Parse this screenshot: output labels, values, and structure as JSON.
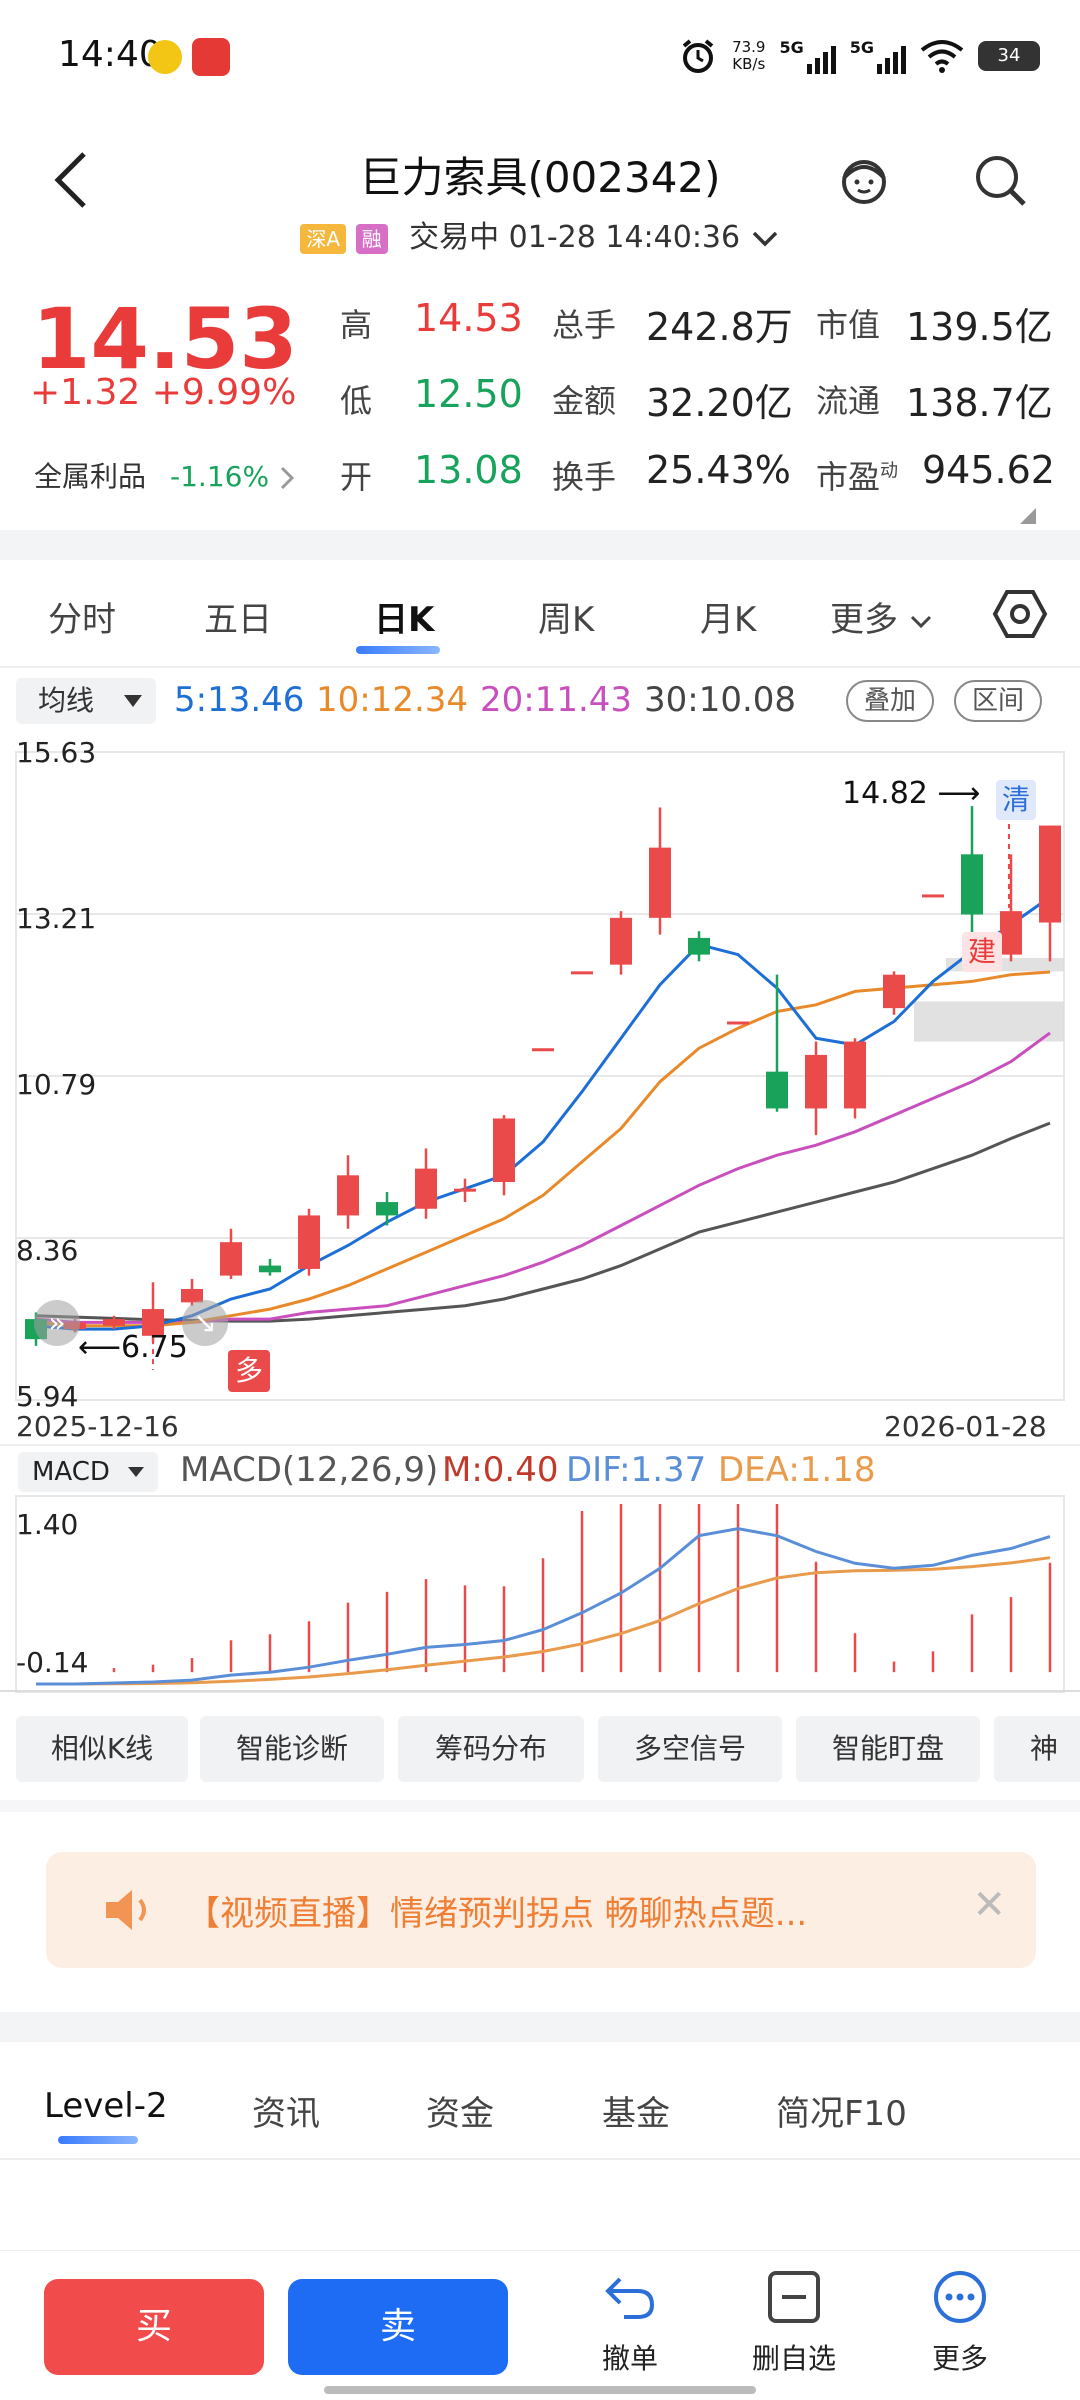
{
  "status_bar": {
    "time": "14:40",
    "speed_value": "73.9",
    "speed_unit": "KB/s",
    "sig1": "5G",
    "sig2": "5G",
    "battery": "34"
  },
  "header": {
    "title": "巨力索具(002342)",
    "tag1": "深A",
    "tag2": "融",
    "status": "交易中 01-28 14:40:36"
  },
  "quote": {
    "price": "14.53",
    "change": "+1.32 +9.99%",
    "profit_label": "全属利品",
    "profit_value": "-1.16%",
    "high_label": "高",
    "high": "14.53",
    "low_label": "低",
    "low": "12.50",
    "open_label": "开",
    "open": "13.08",
    "volume_label": "总手",
    "volume": "242.8万",
    "amount_label": "金额",
    "amount": "32.20亿",
    "turnover_label": "换手",
    "turnover": "25.43%",
    "mcap_label": "市值",
    "mcap": "139.5亿",
    "float_label": "流通",
    "float": "138.7亿",
    "pe_label": "市盈",
    "pe_sup": "动",
    "pe": "945.62"
  },
  "tabs": [
    "分时",
    "五日",
    "日K",
    "周K",
    "月K",
    "更多"
  ],
  "ma": {
    "select": "均线",
    "ma5": "5:13.46",
    "ma10": "10:12.34",
    "ma20": "20:11.43",
    "ma30": "30:10.08",
    "btn1": "叠加",
    "btn2": "区间"
  },
  "kline": {
    "y_labels": [
      "15.63",
      "13.21",
      "10.79",
      "8.36",
      "5.94"
    ],
    "date_start": "2025-12-16",
    "date_end": "2026-01-28",
    "max_label": "14.82",
    "min_label": "6.75",
    "tag_qing": "清",
    "tag_jian": "建",
    "tag_duo": "多"
  },
  "macd": {
    "select": "MACD",
    "params": "MACD(12,26,9)",
    "m": "M:0.40",
    "dif": "DIF:1.37",
    "dea": "DEA:1.18",
    "y_top": "1.40",
    "y_bottom": "-0.14"
  },
  "chart_data": [
    {
      "type": "candlestick",
      "title": "",
      "x_range": [
        "2025-12-16",
        "2026-01-28"
      ],
      "ylim": [
        5.94,
        15.63
      ],
      "candles": [
        {
          "o": 7.15,
          "c": 6.85,
          "h": 7.25,
          "l": 6.75
        },
        {
          "o": 7.0,
          "c": 7.1,
          "h": 7.15,
          "l": 6.95
        },
        {
          "o": 7.05,
          "c": 7.15,
          "h": 7.2,
          "l": 7.0
        },
        {
          "o": 6.9,
          "c": 7.3,
          "h": 7.7,
          "l": 6.8
        },
        {
          "o": 7.4,
          "c": 7.6,
          "h": 7.75,
          "l": 7.35
        },
        {
          "o": 7.8,
          "c": 8.3,
          "h": 8.5,
          "l": 7.75
        },
        {
          "o": 7.95,
          "c": 7.85,
          "h": 8.05,
          "l": 7.8
        },
        {
          "o": 7.9,
          "c": 8.7,
          "h": 8.8,
          "l": 7.8
        },
        {
          "o": 8.7,
          "c": 9.3,
          "h": 9.6,
          "l": 8.5
        },
        {
          "o": 8.9,
          "c": 8.7,
          "h": 9.05,
          "l": 8.55
        },
        {
          "o": 8.8,
          "c": 9.4,
          "h": 9.7,
          "l": 8.65
        },
        {
          "o": 9.1,
          "c": 9.1,
          "h": 9.25,
          "l": 8.9
        },
        {
          "o": 9.2,
          "c": 10.15,
          "h": 10.2,
          "l": 9.0
        },
        {
          "o": 11.2,
          "c": 11.2,
          "h": 11.2,
          "l": 11.2
        },
        {
          "o": 12.35,
          "c": 12.35,
          "h": 12.35,
          "l": 12.35
        },
        {
          "o": 12.45,
          "c": 13.15,
          "h": 13.25,
          "l": 12.3
        },
        {
          "o": 13.15,
          "c": 14.2,
          "h": 14.8,
          "l": 12.9
        },
        {
          "o": 12.85,
          "c": 12.6,
          "h": 12.95,
          "l": 12.5
        },
        {
          "o": 11.6,
          "c": 11.6,
          "h": 11.6,
          "l": 11.6
        },
        {
          "o": 10.85,
          "c": 10.3,
          "h": 12.3,
          "l": 10.25
        },
        {
          "o": 10.3,
          "c": 11.1,
          "h": 11.3,
          "l": 9.9
        },
        {
          "o": 10.3,
          "c": 11.3,
          "h": 11.35,
          "l": 10.15
        },
        {
          "o": 11.8,
          "c": 12.3,
          "h": 12.35,
          "l": 11.7
        },
        {
          "o": 13.5,
          "c": 13.5,
          "h": 13.5,
          "l": 13.5
        },
        {
          "o": 14.1,
          "c": 13.2,
          "h": 14.82,
          "l": 12.6
        },
        {
          "o": 12.6,
          "c": 13.25,
          "h": 14.1,
          "l": 12.5
        },
        {
          "o": 13.08,
          "c": 14.53,
          "h": 14.53,
          "l": 12.5
        }
      ],
      "ma5": [
        7.05,
        7.0,
        7.0,
        7.05,
        7.2,
        7.45,
        7.6,
        7.95,
        8.25,
        8.6,
        8.9,
        9.1,
        9.3,
        9.8,
        10.55,
        11.35,
        12.15,
        12.75,
        12.6,
        12.1,
        11.35,
        11.25,
        11.6,
        12.2,
        12.65,
        13.05,
        13.46
      ],
      "ma10": [
        7.1,
        7.05,
        7.05,
        7.05,
        7.1,
        7.2,
        7.3,
        7.45,
        7.65,
        7.9,
        8.15,
        8.4,
        8.65,
        9.0,
        9.5,
        10.0,
        10.7,
        11.2,
        11.5,
        11.75,
        11.85,
        12.05,
        12.1,
        12.15,
        12.2,
        12.3,
        12.34
      ],
      "ma20": [
        7.15,
        7.1,
        7.1,
        7.1,
        7.1,
        7.15,
        7.15,
        7.25,
        7.3,
        7.35,
        7.5,
        7.65,
        7.8,
        8.0,
        8.25,
        8.55,
        8.85,
        9.15,
        9.4,
        9.6,
        9.75,
        9.95,
        10.2,
        10.45,
        10.7,
        11.0,
        11.43
      ],
      "ma30": [
        7.2,
        7.18,
        7.16,
        7.14,
        7.13,
        7.12,
        7.12,
        7.15,
        7.2,
        7.25,
        7.3,
        7.35,
        7.45,
        7.6,
        7.75,
        7.95,
        8.2,
        8.45,
        8.6,
        8.75,
        8.9,
        9.05,
        9.2,
        9.4,
        9.6,
        9.85,
        10.08
      ]
    },
    {
      "type": "macd",
      "title": "",
      "ylim": [
        -0.14,
        1.7
      ],
      "dif": [
        -0.12,
        -0.12,
        -0.11,
        -0.1,
        -0.08,
        -0.03,
        0.0,
        0.05,
        0.12,
        0.18,
        0.25,
        0.28,
        0.32,
        0.43,
        0.6,
        0.8,
        1.05,
        1.38,
        1.45,
        1.38,
        1.22,
        1.1,
        1.05,
        1.08,
        1.18,
        1.25,
        1.37
      ]
    }
  ],
  "tools": [
    "相似K线",
    "智能诊断",
    "筹码分布",
    "多空信号",
    "智能盯盘",
    "神"
  ],
  "banner": {
    "text": "【视频直播】情绪预判拐点 畅聊热点题..."
  },
  "bottom_tabs": [
    "Level-2",
    "资讯",
    "资金",
    "基金",
    "简况F10"
  ],
  "action_bar": {
    "buy": "买",
    "sell": "卖",
    "cancel": "撤单",
    "remove_fav": "删自选",
    "more": "更多"
  }
}
